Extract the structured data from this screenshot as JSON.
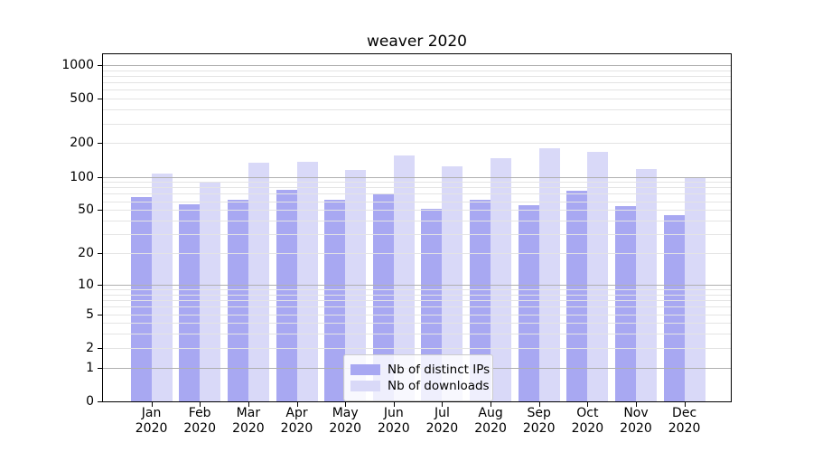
{
  "chart_data": {
    "type": "bar",
    "title": "weaver 2020",
    "categories": [
      "Jan 2020",
      "Feb 2020",
      "Mar 2020",
      "Apr 2020",
      "May 2020",
      "Jun 2020",
      "Jul 2020",
      "Aug 2020",
      "Sep 2020",
      "Oct 2020",
      "Nov 2020",
      "Dec 2020"
    ],
    "series": [
      {
        "name": "Nb of distinct IPs",
        "color": "#a8a8f2",
        "values": [
          65,
          56,
          62,
          76,
          62,
          70,
          51,
          62,
          55,
          75,
          54,
          45
        ]
      },
      {
        "name": "Nb of downloads",
        "color": "#d9d9f8",
        "values": [
          106,
          89,
          133,
          136,
          116,
          154,
          125,
          148,
          181,
          168,
          117,
          97
        ]
      }
    ],
    "y_axis": {
      "scale": "log1p",
      "tick_values": [
        0,
        1,
        2,
        5,
        10,
        20,
        50,
        100,
        200,
        500,
        1000
      ],
      "tick_labels": [
        "0",
        "1",
        "2",
        "5",
        "10",
        "20",
        "50",
        "100",
        "200",
        "500",
        "1000"
      ],
      "ylim": [
        0,
        1300
      ],
      "grid": true
    },
    "x_axis": {
      "tick_line2": "2020"
    },
    "legend_position": "lower center",
    "colors": {
      "major_grid": "#b0b0b0",
      "minor_grid": "#e4e4e4",
      "spine": "#000000"
    }
  }
}
